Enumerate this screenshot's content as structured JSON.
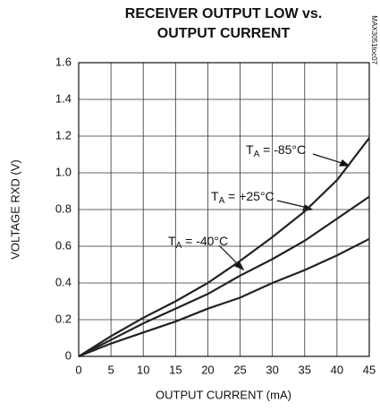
{
  "chart_data": {
    "type": "line",
    "title": [
      "RECEIVER OUTPUT LOW vs.",
      "OUTPUT CURRENT"
    ],
    "side_label": "MAX3051toc07",
    "x_label": "OUTPUT CURRENT (mA)",
    "y_label": "VOLTAGE RXD (V)",
    "x": [
      0,
      5,
      10,
      15,
      20,
      25,
      30,
      35,
      40,
      45
    ],
    "series": [
      {
        "name": "TA = -85°C",
        "color": "#222222",
        "values": [
          0,
          0.11,
          0.21,
          0.3,
          0.4,
          0.52,
          0.65,
          0.79,
          0.96,
          1.19
        ]
      },
      {
        "name": "TA = +25°C",
        "color": "#222222",
        "values": [
          0,
          0.09,
          0.18,
          0.26,
          0.34,
          0.44,
          0.53,
          0.63,
          0.75,
          0.87
        ]
      },
      {
        "name": "TA = -40°C",
        "color": "#222222",
        "values": [
          0,
          0.07,
          0.13,
          0.19,
          0.26,
          0.32,
          0.4,
          0.47,
          0.55,
          0.64
        ]
      }
    ],
    "xlim": [
      0,
      45
    ],
    "xticks": [
      0,
      5,
      10,
      15,
      20,
      25,
      30,
      35,
      40,
      45
    ],
    "ylim": [
      0,
      1.6
    ],
    "yticks": [
      0,
      0.2,
      0.4,
      0.6,
      0.8,
      {
        "value": 1,
        "label": "1.0"
      },
      1.2,
      1.4,
      1.6
    ],
    "grid": true
  }
}
